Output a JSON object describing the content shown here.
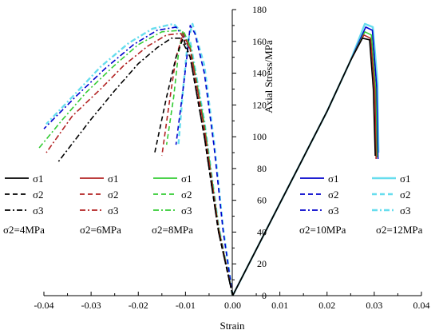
{
  "chart_data": {
    "type": "line",
    "xlabel": "Strain",
    "ylabel": "Axial Stress/MPa",
    "xlim": [
      -0.04,
      0.04
    ],
    "ylim": [
      0,
      180
    ],
    "xticks": [
      -0.04,
      -0.03,
      -0.02,
      -0.01,
      0.0,
      0.01,
      0.02,
      0.03,
      0.04
    ],
    "xtick_labels": [
      "-0.04",
      "-0.03",
      "-0.02",
      "-0.01",
      "0.00",
      "0.01",
      "0.02",
      "0.03",
      "0.04"
    ],
    "yticks": [
      0,
      20,
      40,
      60,
      80,
      100,
      120,
      140,
      160,
      180
    ],
    "ytick_labels": [
      "0",
      "20",
      "40",
      "60",
      "80",
      "100",
      "120",
      "140",
      "160",
      "180"
    ],
    "legend_groups": [
      {
        "caption": "σ2=4MPa",
        "color": "#000000",
        "entries": [
          "σ1",
          "σ2",
          "σ3"
        ]
      },
      {
        "caption": "σ2=6MPa",
        "color": "#b22222",
        "entries": [
          "σ1",
          "σ2",
          "σ3"
        ]
      },
      {
        "caption": "σ2=8MPa",
        "color": "#33cc33",
        "entries": [
          "σ1",
          "σ2",
          "σ3"
        ]
      },
      {
        "caption": "σ2=10MPa",
        "color": "#0000cc",
        "entries": [
          "σ1",
          "σ2",
          "σ3"
        ]
      },
      {
        "caption": "σ2=12MPa",
        "color": "#66ddee",
        "entries": [
          "σ1",
          "σ2",
          "σ3"
        ]
      }
    ],
    "series": [
      {
        "group": 0,
        "strain": "σ1",
        "color": "#000000",
        "dash": "solid",
        "x": [
          0.0,
          0.01,
          0.02,
          0.025,
          0.0275,
          0.029,
          0.0298,
          0.0302
        ],
        "y": [
          0,
          58,
          116,
          148,
          162,
          161,
          130,
          88
        ]
      },
      {
        "group": 0,
        "strain": "σ2",
        "color": "#000000",
        "dash": "dash",
        "x": [
          0.0,
          -0.003,
          -0.006,
          -0.009,
          -0.0105,
          -0.012,
          -0.014,
          -0.0165
        ],
        "y": [
          0,
          40,
          100,
          150,
          162,
          150,
          125,
          90
        ]
      },
      {
        "group": 0,
        "strain": "σ3",
        "color": "#000000",
        "dash": "dashdot",
        "x": [
          0.0,
          -0.003,
          -0.006,
          -0.009,
          -0.011,
          -0.013,
          -0.016,
          -0.02,
          -0.025,
          -0.03,
          -0.037
        ],
        "y": [
          0,
          40,
          100,
          150,
          162,
          162,
          156,
          146,
          129,
          111,
          84
        ]
      },
      {
        "group": 1,
        "strain": "σ1",
        "color": "#b22222",
        "dash": "solid",
        "x": [
          0.0,
          0.01,
          0.02,
          0.025,
          0.0278,
          0.0292,
          0.0301,
          0.0304
        ],
        "y": [
          0,
          58,
          116,
          148,
          164,
          162,
          130,
          86
        ]
      },
      {
        "group": 1,
        "strain": "σ2",
        "color": "#b22222",
        "dash": "dash",
        "x": [
          0.0,
          -0.003,
          -0.006,
          -0.009,
          -0.0105,
          -0.012,
          -0.0135,
          -0.015
        ],
        "y": [
          0,
          42,
          105,
          155,
          165,
          150,
          120,
          88
        ]
      },
      {
        "group": 1,
        "strain": "σ3",
        "color": "#b22222",
        "dash": "dashdot",
        "x": [
          0.0,
          -0.003,
          -0.006,
          -0.009,
          -0.011,
          -0.014,
          -0.018,
          -0.023,
          -0.028,
          -0.034,
          -0.0395
        ],
        "y": [
          0,
          42,
          105,
          155,
          165,
          164,
          157,
          145,
          130,
          113,
          90
        ]
      },
      {
        "group": 2,
        "strain": "σ1",
        "color": "#33cc33",
        "dash": "solid",
        "x": [
          0.0,
          0.01,
          0.02,
          0.025,
          0.028,
          0.0294,
          0.0303,
          0.0306
        ],
        "y": [
          0,
          58,
          116,
          148,
          166,
          164,
          130,
          87
        ]
      },
      {
        "group": 2,
        "strain": "σ2",
        "color": "#33cc33",
        "dash": "dash",
        "x": [
          0.0,
          -0.003,
          -0.006,
          -0.009,
          -0.0105,
          -0.0115,
          -0.0125,
          -0.014
        ],
        "y": [
          0,
          43,
          108,
          157,
          167,
          152,
          125,
          95
        ]
      },
      {
        "group": 2,
        "strain": "σ3",
        "color": "#33cc33",
        "dash": "dashdot",
        "x": [
          0.0,
          -0.003,
          -0.006,
          -0.009,
          -0.011,
          -0.015,
          -0.02,
          -0.025,
          -0.031,
          -0.036,
          -0.041
        ],
        "y": [
          0,
          43,
          108,
          157,
          167,
          166,
          158,
          145,
          128,
          111,
          93
        ]
      },
      {
        "group": 3,
        "strain": "σ1",
        "color": "#0000cc",
        "dash": "solid",
        "x": [
          0.0,
          0.01,
          0.02,
          0.025,
          0.0282,
          0.0296,
          0.0305,
          0.0308
        ],
        "y": [
          0,
          58,
          116,
          148,
          169,
          167,
          132,
          86
        ]
      },
      {
        "group": 3,
        "strain": "σ2",
        "color": "#0000cc",
        "dash": "dash",
        "x": [
          0.0,
          -0.002,
          -0.004,
          -0.006,
          -0.008,
          -0.009,
          -0.0095,
          -0.0105,
          -0.012
        ],
        "y": [
          0,
          40,
          95,
          140,
          165,
          170,
          155,
          130,
          95
        ]
      },
      {
        "group": 3,
        "strain": "σ3",
        "color": "#0000cc",
        "dash": "dashdot",
        "x": [
          0.0,
          -0.003,
          -0.006,
          -0.009,
          -0.012,
          -0.016,
          -0.021,
          -0.027,
          -0.033,
          -0.04
        ],
        "y": [
          0,
          42,
          108,
          157,
          169,
          167,
          158,
          143,
          126,
          105
        ]
      },
      {
        "group": 4,
        "strain": "σ1",
        "color": "#66ddee",
        "dash": "solid",
        "x": [
          0.0,
          0.01,
          0.02,
          0.025,
          0.028,
          0.0297,
          0.0307,
          0.0309
        ],
        "y": [
          0,
          58,
          116,
          148,
          171,
          169,
          134,
          90
        ]
      },
      {
        "group": 4,
        "strain": "σ2",
        "color": "#66ddee",
        "dash": "dash",
        "x": [
          0.0,
          -0.002,
          -0.004,
          -0.006,
          -0.0085,
          -0.0095,
          -0.0105,
          -0.0115
        ],
        "y": [
          0,
          42,
          98,
          145,
          171,
          160,
          130,
          95
        ]
      },
      {
        "group": 4,
        "strain": "σ3",
        "color": "#66ddee",
        "dash": "dashdot",
        "x": [
          0.0,
          -0.003,
          -0.006,
          -0.009,
          -0.0125,
          -0.017,
          -0.022,
          -0.028,
          -0.034,
          -0.0395
        ],
        "y": [
          0,
          44,
          110,
          160,
          171,
          168,
          159,
          144,
          125,
          108
        ]
      }
    ]
  }
}
